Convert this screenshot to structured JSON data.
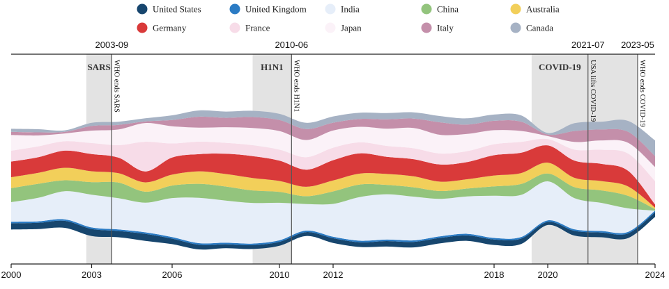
{
  "chart_data": {
    "type": "area",
    "subtype": "streamgraph",
    "title": "",
    "xlabel": "",
    "ylabel": "",
    "xlim": [
      2000,
      2024
    ],
    "grid": false,
    "legend_position": "top",
    "x_ticks": [
      2000,
      2003,
      2006,
      2010,
      2012,
      2018,
      2020,
      2024
    ],
    "x": [
      2000,
      2001,
      2002,
      2003,
      2004,
      2005,
      2006,
      2007,
      2008,
      2009,
      2010,
      2011,
      2012,
      2013,
      2014,
      2015,
      2016,
      2017,
      2018,
      2019,
      2020,
      2021,
      2022,
      2023,
      2024
    ],
    "series": [
      {
        "name": "United States",
        "color": "#17466e",
        "values": [
          8,
          8,
          9,
          9,
          8,
          9,
          7,
          6,
          5,
          5,
          5,
          5,
          6,
          6,
          7,
          7,
          7,
          7,
          7,
          7,
          4,
          6,
          6,
          6,
          6
        ]
      },
      {
        "name": "United Kingdom",
        "color": "#2b7bc4",
        "values": [
          2,
          2,
          2,
          2,
          2,
          2,
          2,
          2,
          2,
          2,
          2,
          2,
          2,
          2,
          2,
          2,
          2,
          2,
          2,
          2,
          2,
          2,
          2,
          2,
          2
        ]
      },
      {
        "name": "India",
        "color": "#e6eef9",
        "values": [
          25,
          30,
          36,
          42,
          40,
          38,
          50,
          58,
          54,
          52,
          48,
          34,
          42,
          56,
          58,
          56,
          48,
          48,
          54,
          54,
          50,
          40,
          36,
          30,
          0
        ]
      },
      {
        "name": "China",
        "color": "#93c47d",
        "values": [
          18,
          18,
          14,
          16,
          20,
          14,
          16,
          18,
          18,
          16,
          14,
          10,
          16,
          16,
          12,
          12,
          10,
          10,
          12,
          14,
          10,
          14,
          16,
          16,
          2
        ]
      },
      {
        "name": "Australia",
        "color": "#f2cf5a",
        "values": [
          14,
          14,
          16,
          14,
          12,
          12,
          14,
          16,
          16,
          16,
          14,
          12,
          14,
          14,
          14,
          14,
          12,
          12,
          14,
          14,
          14,
          12,
          12,
          12,
          2
        ]
      },
      {
        "name": "Germany",
        "color": "#d93a3a",
        "values": [
          20,
          20,
          22,
          22,
          20,
          14,
          22,
          22,
          26,
          28,
          26,
          22,
          26,
          26,
          22,
          22,
          22,
          22,
          26,
          26,
          22,
          22,
          22,
          20,
          4
        ]
      },
      {
        "name": "France",
        "color": "#f7dce8",
        "values": [
          14,
          14,
          12,
          14,
          16,
          38,
          18,
          16,
          14,
          14,
          14,
          16,
          16,
          14,
          14,
          14,
          14,
          14,
          14,
          14,
          8,
          14,
          18,
          22,
          30
        ]
      },
      {
        "name": "Japan",
        "color": "#fbf2f8",
        "values": [
          20,
          14,
          10,
          16,
          20,
          24,
          22,
          18,
          20,
          22,
          24,
          22,
          22,
          20,
          22,
          26,
          24,
          22,
          18,
          14,
          4,
          10,
          12,
          14,
          18
        ]
      },
      {
        "name": "Italy",
        "color": "#c48faa",
        "values": [
          4,
          4,
          2,
          6,
          6,
          2,
          8,
          14,
          12,
          14,
          14,
          14,
          10,
          10,
          12,
          12,
          16,
          12,
          12,
          12,
          2,
          14,
          14,
          14,
          14
        ]
      },
      {
        "name": "Canada",
        "color": "#a6b2c4",
        "values": [
          4,
          4,
          2,
          4,
          4,
          4,
          6,
          8,
          8,
          8,
          8,
          8,
          8,
          8,
          8,
          8,
          8,
          8,
          8,
          8,
          2,
          10,
          10,
          14,
          20
        ]
      }
    ],
    "events": [
      {
        "name": "SARS",
        "start": 2002.8,
        "end": 2003.75,
        "end_label": "2003-09",
        "end_note": "WHO ends SARS"
      },
      {
        "name": "H1N1",
        "start": 2009.0,
        "end": 2010.45,
        "end_label": "2010-06",
        "end_note": "WHO ends H1N1"
      },
      {
        "name": "COVID-19",
        "start": 2019.4,
        "end": 2023.35,
        "markers": [
          {
            "x": 2021.5,
            "label": "2021-07",
            "note": "USA lifts COVID-19"
          },
          {
            "x": 2023.35,
            "label": "2023-05",
            "note": "WHO ends COVID-19"
          }
        ]
      }
    ]
  }
}
